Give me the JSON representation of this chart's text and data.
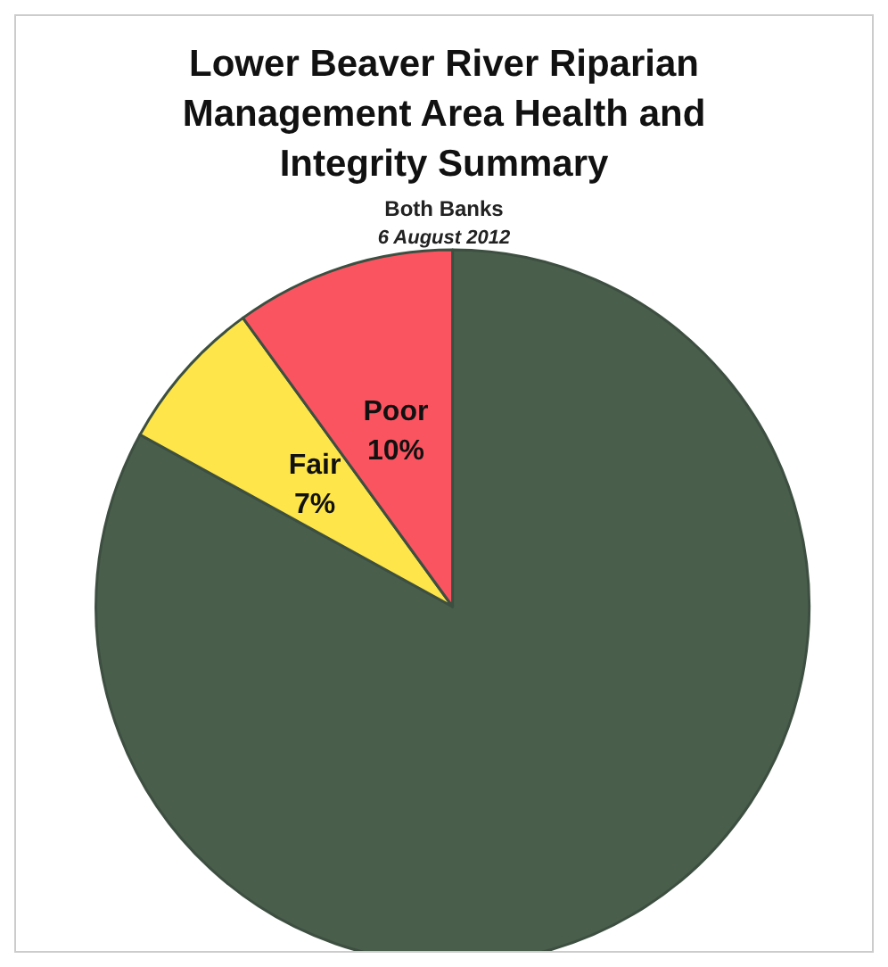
{
  "chart_data": {
    "type": "pie",
    "title": "Lower Beaver River Riparian\nManagement Area Health and\nIntegrity Summary",
    "subtitle": "Both Banks",
    "annotations": [
      "6 August 2012"
    ],
    "categories": [
      null,
      "Fair",
      "Poor"
    ],
    "values": [
      83,
      7,
      10
    ],
    "colors": [
      "#4a5e4c",
      "#fde54a",
      "#fb5461"
    ],
    "value_labels": [
      null,
      "7%",
      "10%"
    ],
    "legend": false
  }
}
